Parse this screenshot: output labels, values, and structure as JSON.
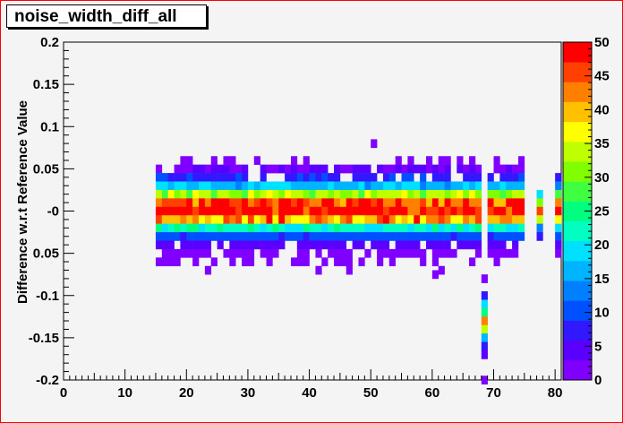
{
  "chart_data": {
    "type": "heatmap",
    "title": "noise_width_diff_all",
    "xlabel": "",
    "ylabel": "Difference w.r.t Reference Value",
    "xlim": [
      0,
      81
    ],
    "ylim": [
      -0.2,
      0.2
    ],
    "x_ticks": [
      "0",
      "10",
      "20",
      "30",
      "40",
      "50",
      "60",
      "70",
      "80"
    ],
    "y_ticks": [
      "0.2",
      "0.15",
      "0.1",
      "0.05",
      "-0",
      "0.05",
      "-0.1",
      "-0.15",
      "-0.2"
    ],
    "z_range": [
      0,
      50
    ],
    "colorbar_ticks": [
      "50",
      "45",
      "40",
      "35",
      "30",
      "25",
      "20",
      "15",
      "10",
      "5",
      "0"
    ],
    "y_bins": [
      0.06,
      0.05,
      0.04,
      0.03,
      0.02,
      0.01,
      0.0,
      -0.01,
      -0.02,
      -0.03,
      -0.04,
      -0.05,
      -0.06,
      -0.07,
      -0.08
    ],
    "x_bin_width": 1,
    "core_x_ranges": [
      [
        15,
        68
      ],
      [
        69,
        75
      ]
    ],
    "core_profile": [
      {
        "y": 0.05,
        "z": 3
      },
      {
        "y": 0.04,
        "z": 8
      },
      {
        "y": 0.03,
        "z": 17
      },
      {
        "y": 0.02,
        "z": 33
      },
      {
        "y": 0.01,
        "z": 46
      },
      {
        "y": 0.0,
        "z": 50
      },
      {
        "y": -0.01,
        "z": 42
      },
      {
        "y": -0.02,
        "z": 22
      },
      {
        "y": -0.03,
        "z": 10
      },
      {
        "y": -0.04,
        "z": 4
      },
      {
        "y": -0.05,
        "z": 2
      }
    ],
    "edge_columns": [
      {
        "x": 77,
        "cells": [
          {
            "y": 0.02,
            "z": 20
          },
          {
            "y": 0.01,
            "z": 32
          },
          {
            "y": 0.0,
            "z": 45
          },
          {
            "y": -0.01,
            "z": 34
          },
          {
            "y": -0.02,
            "z": 14
          },
          {
            "y": -0.03,
            "z": 6
          }
        ]
      },
      {
        "x": 80,
        "cells": [
          {
            "y": 0.04,
            "z": 6
          },
          {
            "y": 0.03,
            "z": 14
          },
          {
            "y": 0.02,
            "z": 28
          },
          {
            "y": 0.01,
            "z": 44
          },
          {
            "y": 0.0,
            "z": 50
          },
          {
            "y": -0.01,
            "z": 36
          },
          {
            "y": -0.02,
            "z": 20
          },
          {
            "y": -0.03,
            "z": 10
          },
          {
            "y": -0.04,
            "z": 4
          },
          {
            "y": -0.05,
            "z": 2
          }
        ]
      }
    ],
    "tail_column": {
      "x": 68,
      "cells": [
        {
          "y": -0.08,
          "z": 2
        },
        {
          "y": -0.1,
          "z": 8
        },
        {
          "y": -0.11,
          "z": 18
        },
        {
          "y": -0.12,
          "z": 26
        },
        {
          "y": -0.13,
          "z": 44
        },
        {
          "y": -0.14,
          "z": 34
        },
        {
          "y": -0.15,
          "z": 16
        },
        {
          "y": -0.16,
          "z": 6
        },
        {
          "y": -0.17,
          "z": 3
        },
        {
          "y": -0.2,
          "z": 2
        }
      ]
    },
    "outliers": [
      {
        "x": 50,
        "y": 0.08,
        "z": 2
      },
      {
        "x": 23,
        "y": -0.07,
        "z": 2
      },
      {
        "x": 41,
        "y": -0.07,
        "z": 2
      },
      {
        "x": 46,
        "y": -0.07,
        "z": 2
      },
      {
        "x": 61,
        "y": -0.07,
        "z": 2
      },
      {
        "x": 60,
        "y": -0.075,
        "z": 2
      }
    ],
    "grid": false,
    "colorbar": "right"
  }
}
